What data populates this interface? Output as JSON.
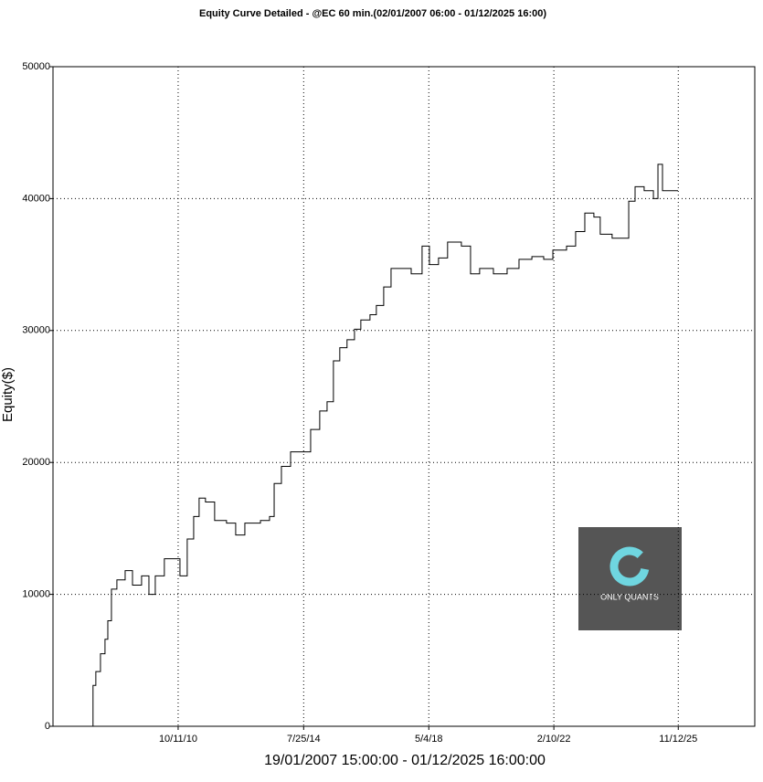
{
  "chart_data": {
    "type": "line",
    "drawstyle": "steps-post",
    "title": "Equity Curve Detailed - @EC 60 min.(02/01/2007 06:00 - 01/12/2025 16:00)",
    "y_label": "Equity($)",
    "x_label": "19/01/2007 15:00:00 - 01/12/2025 16:00:00",
    "watermark": "ONLY QUANTS",
    "color": "#000000",
    "grid": true,
    "xlim": [
      "2007-01-01",
      "2028-03-04"
    ],
    "xticks": [
      {
        "value": "2010-10-11",
        "label": "10/11/10"
      },
      {
        "value": "2014-07-25",
        "label": "7/25/14"
      },
      {
        "value": "2018-05-04",
        "label": "5/4/18"
      },
      {
        "value": "2022-02-10",
        "label": "2/10/22"
      },
      {
        "value": "2025-11-12",
        "label": "11/12/25"
      }
    ],
    "ylim": [
      0,
      50000
    ],
    "yticks": [
      0,
      10000,
      20000,
      30000,
      40000,
      50000
    ],
    "x": [
      "2008-03-16",
      "2008-03-17",
      "2008-04-17",
      "2008-06-07",
      "2008-07-27",
      "2008-08-27",
      "2008-10-06",
      "2008-12-05",
      "2009-03-06",
      "2009-05-26",
      "2009-09-03",
      "2009-11-23",
      "2010-02-01",
      "2010-05-12",
      "2010-08-21",
      "2010-10-31",
      "2011-01-19",
      "2011-03-31",
      "2011-05-30",
      "2011-08-08",
      "2011-11-17",
      "2012-03-27",
      "2012-07-06",
      "2012-10-15",
      "2013-04-05",
      "2013-07-14",
      "2013-09-03",
      "2013-11-22",
      "2014-03-03",
      "2014-07-01",
      "2014-10-10",
      "2015-01-18",
      "2015-04-09",
      "2015-06-18",
      "2015-08-27",
      "2015-11-15",
      "2016-02-05",
      "2016-04-15",
      "2016-07-25",
      "2016-10-03",
      "2016-12-23",
      "2017-03-14",
      "2017-07-13",
      "2017-10-22",
      "2018-02-19",
      "2018-05-11",
      "2018-08-19",
      "2018-11-27",
      "2019-04-28",
      "2019-08-07",
      "2019-11-15",
      "2020-04-15",
      "2020-09-13",
      "2021-01-22",
      "2021-06-13",
      "2021-10-21",
      "2022-01-30",
      "2022-06-30",
      "2022-10-08",
      "2023-01-17",
      "2023-04-27",
      "2023-07-06",
      "2023-11-14",
      "2024-02-23",
      "2024-05-15",
      "2024-07-24",
      "2024-11-01",
      "2025-02-11",
      "2025-04-02",
      "2025-05-22",
      "2025-08-30",
      "2025-11-09"
    ],
    "values": [
      0,
      3100,
      4150,
      5500,
      6600,
      8000,
      10400,
      11100,
      11800,
      10700,
      11400,
      10000,
      11400,
      12700,
      12700,
      11400,
      14200,
      15900,
      17300,
      17000,
      15600,
      15400,
      14500,
      15400,
      15600,
      15900,
      18400,
      19700,
      20800,
      20800,
      22500,
      23900,
      24600,
      27700,
      28700,
      29300,
      30100,
      30800,
      31200,
      31900,
      33300,
      34700,
      34700,
      34300,
      36400,
      35000,
      35500,
      36700,
      36400,
      34300,
      34700,
      34300,
      34700,
      35400,
      35600,
      35400,
      36100,
      36400,
      37500,
      38900,
      38600,
      37300,
      37000,
      37000,
      39800,
      40900,
      40600,
      40000,
      42600,
      40600,
      40600,
      40600
    ]
  }
}
